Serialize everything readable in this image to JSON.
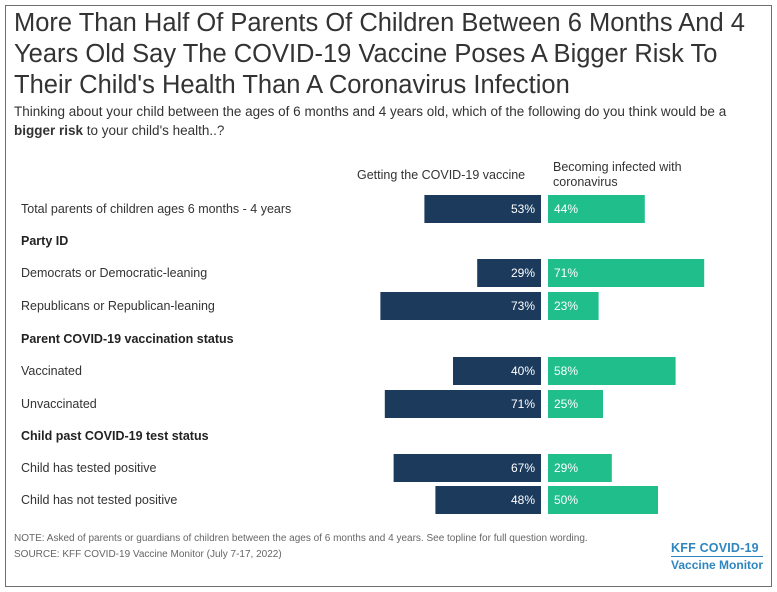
{
  "title": "More Than Half Of Parents Of Children Between 6 Months And 4 Years Old Say The COVID-19 Vaccine Poses A Bigger Risk To Their Child's Health Than A Coronavirus Infection",
  "subtitle_pre": "Thinking about your child between the ages of 6 months and 4 years old, which of the following do you think would be a ",
  "subtitle_bold": "bigger risk",
  "subtitle_post": " to your child's health..?",
  "note": "NOTE: Asked of parents or guardians of children between the ages of 6 months and 4 years. See topline for full question wording.",
  "source": "SOURCE: KFF COVID-19 Vaccine Monitor (July 7-17, 2022)",
  "logo": {
    "line1": "KFF COVID-19",
    "line2": "Vaccine Monitor"
  },
  "colors": {
    "vaccine": "#1b3a5c",
    "infected": "#1fbe8b"
  },
  "chart_data": {
    "type": "bar",
    "series": [
      {
        "name": "Getting the COVID-19 vaccine",
        "color": "#1b3a5c"
      },
      {
        "name": "Becoming infected with coronavirus",
        "color": "#1fbe8b"
      }
    ],
    "rows": [
      {
        "kind": "row",
        "label": "Total parents of children ages 6 months - 4 years",
        "left": 53,
        "right": 44,
        "left_text": "53%",
        "right_text": "44%"
      },
      {
        "kind": "group",
        "label": "Party ID"
      },
      {
        "kind": "row",
        "label": "Democrats or Democratic-leaning",
        "left": 29,
        "right": 71,
        "left_text": "29%",
        "right_text": "71%"
      },
      {
        "kind": "row",
        "label": "Republicans or Republican-leaning",
        "left": 73,
        "right": 23,
        "left_text": "73%",
        "right_text": "23%"
      },
      {
        "kind": "group",
        "label": "Parent COVID-19 vaccination status"
      },
      {
        "kind": "row",
        "label": "Vaccinated",
        "left": 40,
        "right": 58,
        "left_text": "40%",
        "right_text": "58%"
      },
      {
        "kind": "row",
        "label": "Unvaccinated",
        "left": 71,
        "right": 25,
        "left_text": "71%",
        "right_text": "25%"
      },
      {
        "kind": "group",
        "label": "Child past COVID-19 test status"
      },
      {
        "kind": "row",
        "label": "Child has tested positive",
        "left": 67,
        "right": 29,
        "left_text": "67%",
        "right_text": "29%"
      },
      {
        "kind": "row",
        "label": "Child has not tested positive",
        "left": 48,
        "right": 50,
        "left_text": "48%",
        "right_text": "50%"
      }
    ]
  }
}
